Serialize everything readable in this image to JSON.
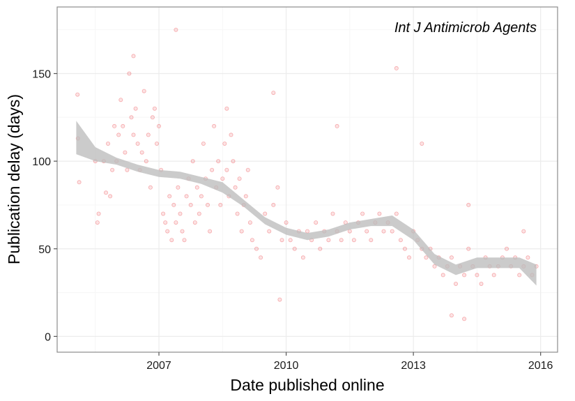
{
  "chart_data": {
    "type": "scatter",
    "title": "",
    "annotation": "Int J Antimicrob Agents",
    "xlabel": "Date published online",
    "ylabel": "Publication delay (days)",
    "xlim": [
      2004.6,
      2016.4
    ],
    "ylim": [
      -9,
      188
    ],
    "x_ticks": [
      2007,
      2010,
      2013,
      2016
    ],
    "y_ticks": [
      0,
      50,
      100,
      150
    ],
    "grid": true,
    "legend": "none",
    "colors": {
      "points": "#e8262b",
      "smooth_band": "#bdbdbd",
      "panel_border": "#999999",
      "grid_major": "#ececec",
      "grid_minor": "#f6f6f6"
    },
    "series": [
      {
        "kind": "points",
        "x": [
          2005.08,
          2005.09,
          2005.12,
          2005.5,
          2005.55,
          2005.58,
          2005.7,
          2005.75,
          2005.8,
          2005.85,
          2005.9,
          2005.95,
          2006.0,
          2006.05,
          2006.1,
          2006.15,
          2006.2,
          2006.25,
          2006.3,
          2006.35,
          2006.4,
          2006.45,
          2006.5,
          2006.55,
          2006.6,
          2006.65,
          2006.7,
          2006.75,
          2006.8,
          2006.85,
          2006.9,
          2006.95,
          2007.0,
          2007.05,
          2007.1,
          2007.15,
          2007.2,
          2007.25,
          2007.3,
          2007.35,
          2007.4,
          2007.45,
          2007.5,
          2007.55,
          2007.6,
          2007.65,
          2007.7,
          2007.75,
          2007.8,
          2007.85,
          2007.9,
          2007.95,
          2008.0,
          2008.05,
          2008.1,
          2008.15,
          2008.2,
          2008.25,
          2008.3,
          2008.35,
          2008.4,
          2008.45,
          2008.5,
          2008.55,
          2008.6,
          2008.65,
          2008.7,
          2008.75,
          2008.8,
          2008.85,
          2008.9,
          2008.95,
          2009.0,
          2009.05,
          2009.1,
          2009.15,
          2009.2,
          2009.3,
          2009.4,
          2009.5,
          2009.6,
          2009.7,
          2009.8,
          2009.9,
          2010.0,
          2010.1,
          2010.2,
          2010.3,
          2010.4,
          2010.5,
          2010.6,
          2010.7,
          2010.8,
          2010.9,
          2011.0,
          2011.1,
          2011.2,
          2011.3,
          2011.4,
          2011.5,
          2011.6,
          2011.7,
          2011.8,
          2011.9,
          2012.0,
          2012.1,
          2012.2,
          2012.3,
          2012.4,
          2012.5,
          2012.6,
          2012.7,
          2012.8,
          2012.9,
          2013.0,
          2013.1,
          2013.2,
          2013.3,
          2013.4,
          2013.5,
          2013.6,
          2013.7,
          2013.8,
          2013.9,
          2014.0,
          2014.1,
          2014.2,
          2014.3,
          2014.4,
          2014.5,
          2014.6,
          2014.7,
          2014.8,
          2014.9,
          2015.0,
          2015.1,
          2015.2,
          2015.3,
          2015.4,
          2015.5,
          2015.6,
          2015.7,
          2015.8,
          2015.9,
          2006.4,
          2007.4,
          2008.6,
          2009.7,
          2011.2,
          2012.6,
          2013.2,
          2014.3,
          2015.6,
          2009.85,
          2013.9,
          2014.2
        ],
        "y": [
          138,
          113,
          88,
          100,
          65,
          70,
          100,
          82,
          110,
          80,
          95,
          120,
          100,
          115,
          135,
          120,
          105,
          95,
          150,
          125,
          115,
          130,
          110,
          95,
          105,
          140,
          100,
          115,
          85,
          125,
          130,
          110,
          120,
          95,
          70,
          65,
          60,
          80,
          55,
          75,
          65,
          85,
          70,
          60,
          55,
          80,
          90,
          75,
          100,
          65,
          85,
          70,
          80,
          110,
          90,
          75,
          60,
          95,
          120,
          85,
          100,
          75,
          90,
          110,
          95,
          80,
          115,
          100,
          85,
          70,
          90,
          60,
          75,
          80,
          95,
          65,
          55,
          50,
          45,
          70,
          60,
          75,
          85,
          55,
          65,
          55,
          50,
          60,
          45,
          60,
          55,
          65,
          50,
          60,
          55,
          70,
          60,
          55,
          65,
          60,
          55,
          65,
          70,
          60,
          55,
          65,
          70,
          60,
          65,
          60,
          70,
          55,
          50,
          45,
          60,
          55,
          50,
          45,
          50,
          40,
          45,
          35,
          40,
          45,
          30,
          40,
          35,
          50,
          40,
          35,
          30,
          45,
          40,
          35,
          40,
          45,
          50,
          40,
          45,
          35,
          40,
          45,
          35,
          40,
          160,
          175,
          130,
          139,
          120,
          153,
          110,
          75,
          60,
          21,
          12,
          10
        ]
      },
      {
        "kind": "smooth",
        "name": "",
        "x": [
          2005.05,
          2005.5,
          2006.0,
          2006.5,
          2007.0,
          2007.5,
          2008.0,
          2008.5,
          2009.0,
          2009.5,
          2010.0,
          2010.5,
          2011.0,
          2011.5,
          2012.0,
          2012.5,
          2013.0,
          2013.5,
          2014.0,
          2014.5,
          2015.0,
          2015.5,
          2015.9
        ],
        "y": [
          110,
          103,
          100,
          96,
          93,
          92,
          89,
          85,
          76,
          66,
          60,
          57,
          59,
          63,
          65,
          66,
          58,
          44,
          38,
          42,
          42,
          42,
          35
        ],
        "lower": [
          104,
          100,
          98,
          94,
          91,
          90,
          87,
          82,
          74,
          64,
          58,
          55,
          57,
          61,
          63,
          63,
          55,
          41,
          35,
          39,
          39,
          39,
          29
        ],
        "upper": [
          123,
          108,
          102,
          98,
          95,
          94,
          91,
          88,
          78,
          68,
          62,
          59,
          61,
          65,
          67,
          69,
          61,
          47,
          41,
          45,
          45,
          45,
          41
        ]
      }
    ]
  }
}
